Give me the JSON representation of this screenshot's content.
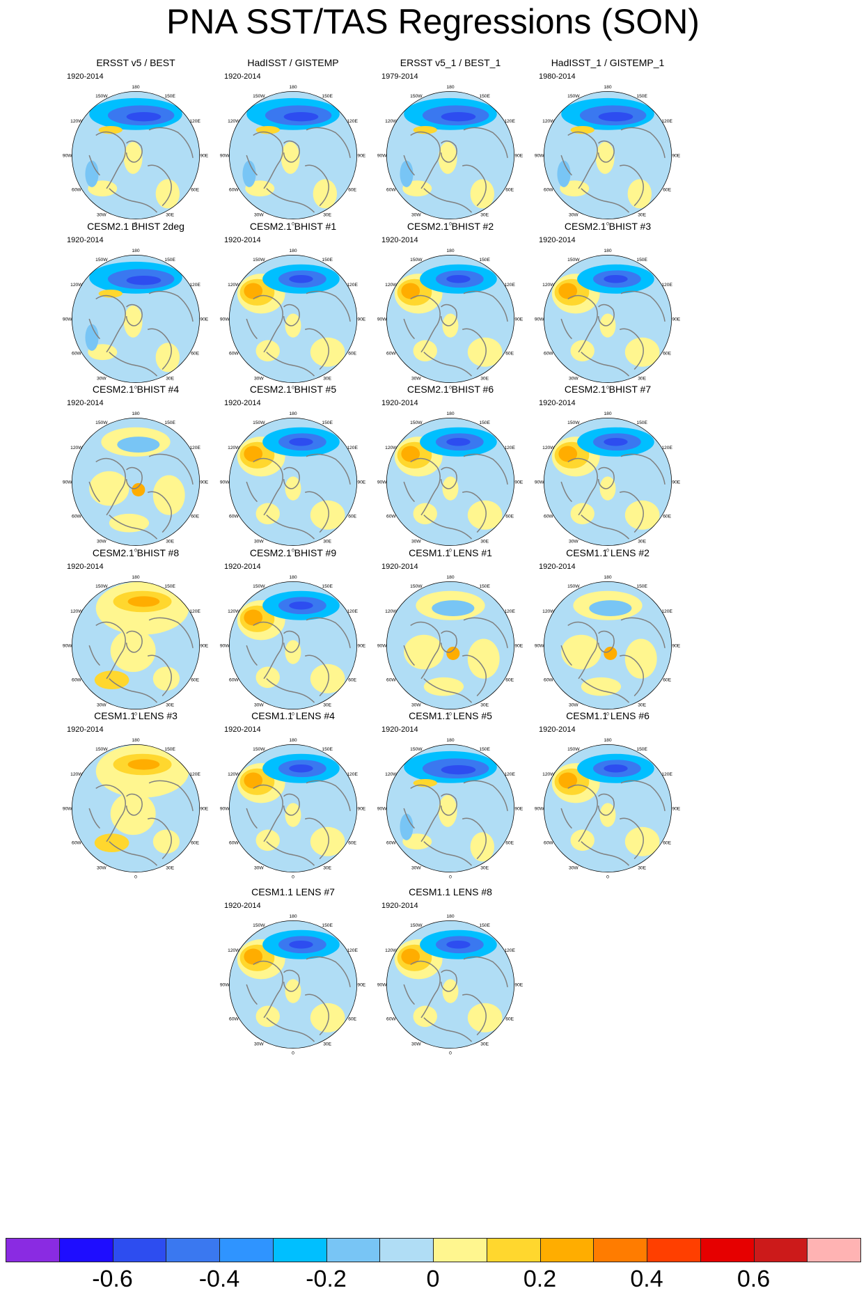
{
  "title": "PNA SST/TAS Regressions (SON)",
  "panels": [
    {
      "title": "ERSST v5 / BEST",
      "period": "1920-2014",
      "pattern": "obs"
    },
    {
      "title": "HadISST / GISTEMP",
      "period": "1920-2014",
      "pattern": "obs"
    },
    {
      "title": "ERSST v5_1 / BEST_1",
      "period": "1979-2014",
      "pattern": "obs"
    },
    {
      "title": "HadISST_1 / GISTEMP_1",
      "period": "1980-2014",
      "pattern": "obs"
    },
    {
      "title": "CESM2.1 BHIST 2deg",
      "period": "1920-2014",
      "pattern": "obs"
    },
    {
      "title": "CESM2.1 BHIST #1",
      "period": "1920-2014",
      "pattern": "dipole"
    },
    {
      "title": "CESM2.1 BHIST #2",
      "period": "1920-2014",
      "pattern": "dipole"
    },
    {
      "title": "CESM2.1 BHIST #3",
      "period": "1920-2014",
      "pattern": "dipole"
    },
    {
      "title": "CESM2.1 BHIST #4",
      "period": "1920-2014",
      "pattern": "weak"
    },
    {
      "title": "CESM2.1 BHIST #5",
      "period": "1920-2014",
      "pattern": "dipole"
    },
    {
      "title": "CESM2.1 BHIST #6",
      "period": "1920-2014",
      "pattern": "dipole"
    },
    {
      "title": "CESM2.1 BHIST #7",
      "period": "1920-2014",
      "pattern": "dipole"
    },
    {
      "title": "CESM2.1 BHIST #8",
      "period": "1920-2014",
      "pattern": "warm"
    },
    {
      "title": "CESM2.1 BHIST #9",
      "period": "1920-2014",
      "pattern": "dipole"
    },
    {
      "title": "CESM1.1 LENS #1",
      "period": "1920-2014",
      "pattern": "weak"
    },
    {
      "title": "CESM1.1 LENS #2",
      "period": "1920-2014",
      "pattern": "weak"
    },
    {
      "title": "CESM1.1 LENS #3",
      "period": "1920-2014",
      "pattern": "warm"
    },
    {
      "title": "CESM1.1 LENS #4",
      "period": "1920-2014",
      "pattern": "dipole"
    },
    {
      "title": "CESM1.1 LENS #5",
      "period": "1920-2014",
      "pattern": "obs"
    },
    {
      "title": "CESM1.1 LENS #6",
      "period": "1920-2014",
      "pattern": "dipole"
    },
    {
      "title": "CESM1.1 LENS #7",
      "period": "1920-2014",
      "pattern": "dipole"
    },
    {
      "title": "CESM1.1 LENS #8",
      "period": "1920-2014",
      "pattern": "dipole"
    }
  ],
  "grid_labels": {
    "longitudes": [
      "180",
      "150E",
      "120E",
      "90E",
      "60E",
      "30E",
      "0",
      "30W",
      "60W",
      "90W",
      "120W",
      "150W"
    ]
  },
  "colorbar": {
    "colors": [
      "#8a2be2",
      "#1e0dff",
      "#2d4df0",
      "#3a78f0",
      "#2f94ff",
      "#00bfff",
      "#78c5f5",
      "#b0ddf5",
      "#fff68f",
      "#ffd72e",
      "#ffad00",
      "#ff7c00",
      "#ff3f00",
      "#e60000",
      "#cc1a1a",
      "#ffb3b3"
    ],
    "tick_labels": [
      {
        "text": "-0.6",
        "after_box": 1
      },
      {
        "text": "-0.4",
        "after_box": 3
      },
      {
        "text": "-0.2",
        "after_box": 5
      },
      {
        "text": "0",
        "after_box": 7
      },
      {
        "text": "0.2",
        "after_box": 9
      },
      {
        "text": "0.4",
        "after_box": 11
      },
      {
        "text": "0.6",
        "after_box": 13
      }
    ]
  }
}
